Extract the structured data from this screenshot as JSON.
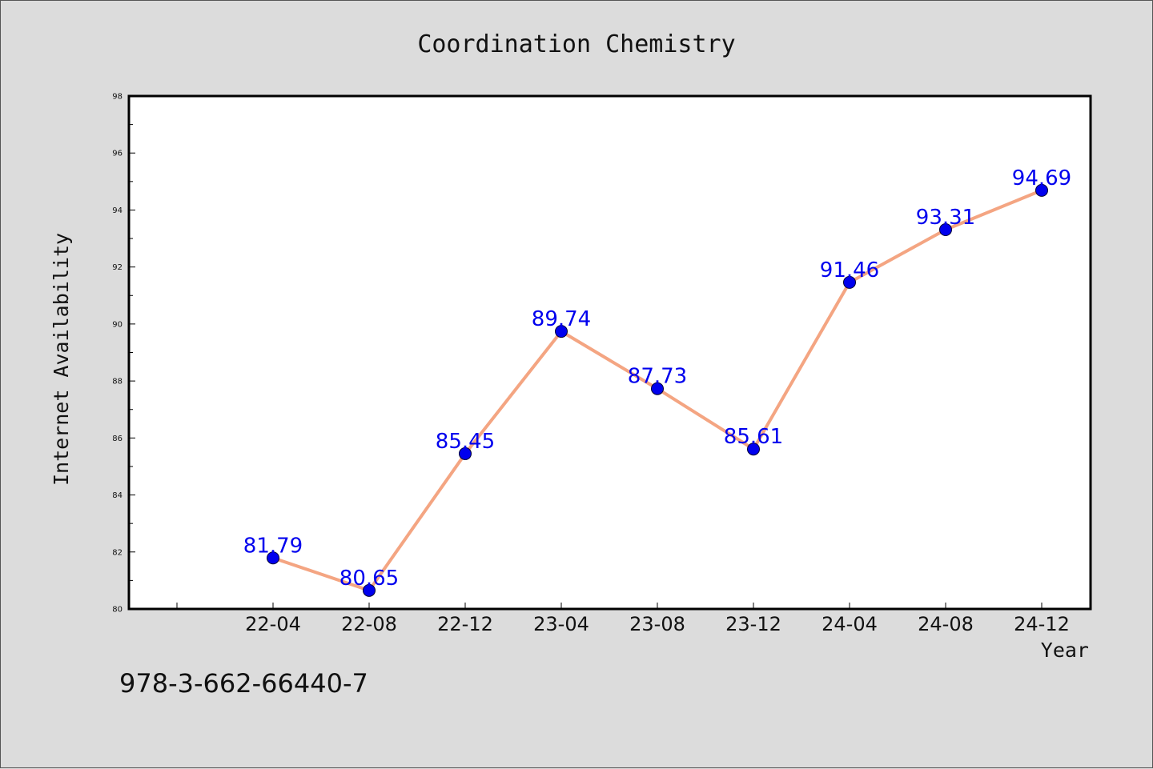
{
  "chart_data": {
    "type": "line",
    "title": "Coordination Chemistry",
    "xlabel": "Year",
    "ylabel": "Internet Availability",
    "categories": [
      "22-04",
      "22-08",
      "22-12",
      "23-04",
      "23-08",
      "23-12",
      "24-04",
      "24-08",
      "24-12"
    ],
    "values": [
      81.79,
      80.65,
      85.45,
      89.74,
      87.73,
      85.61,
      91.46,
      93.31,
      94.69
    ],
    "data_labels": [
      "81.79",
      "80.65",
      "85.45",
      "89.74",
      "87.73",
      "85.61",
      "91.46",
      "93.31",
      "94.69"
    ],
    "ylim": [
      80,
      98
    ],
    "yticks": [
      80,
      82,
      84,
      86,
      88,
      90,
      92,
      94,
      96,
      98
    ],
    "ytick_labels": [
      "80",
      "82",
      "84",
      "86",
      "88",
      "90",
      "92",
      "94",
      "96",
      "98"
    ],
    "grid": false,
    "legend": "none",
    "line_color": "#f4a582",
    "marker_color": "#0000ee",
    "label_color": "#0000ee"
  },
  "footer": {
    "isbn": "978-3-662-66440-7"
  }
}
